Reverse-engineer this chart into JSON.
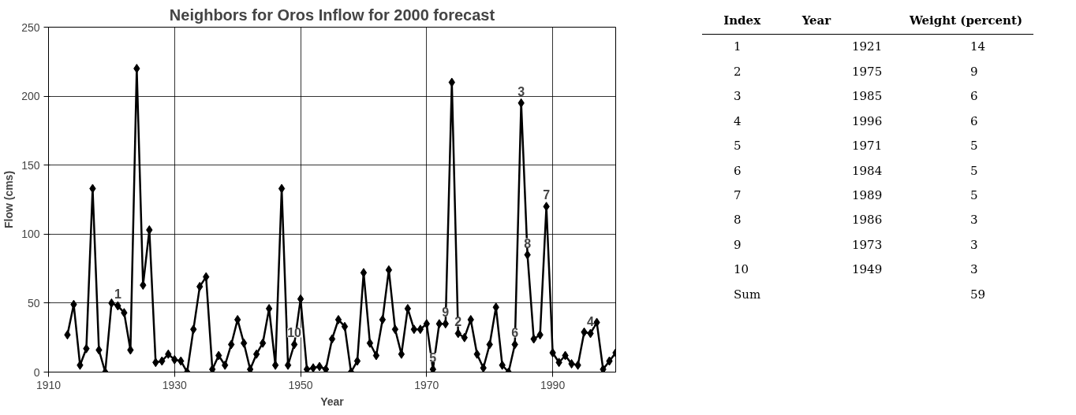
{
  "chart_data": [
    {
      "type": "line",
      "title": "Neighbors for Oros Inflow for 2000 forecast",
      "xlabel": "Year",
      "ylabel": "Flow (cms)",
      "x": [
        1913,
        1914,
        1915,
        1916,
        1917,
        1918,
        1919,
        1920,
        1921,
        1922,
        1923,
        1924,
        1925,
        1926,
        1927,
        1928,
        1929,
        1930,
        1931,
        1932,
        1933,
        1934,
        1935,
        1936,
        1937,
        1938,
        1939,
        1940,
        1941,
        1942,
        1943,
        1944,
        1945,
        1946,
        1947,
        1948,
        1949,
        1950,
        1951,
        1952,
        1953,
        1954,
        1955,
        1956,
        1957,
        1958,
        1959,
        1960,
        1961,
        1962,
        1963,
        1964,
        1965,
        1966,
        1967,
        1968,
        1969,
        1970,
        1971,
        1972,
        1973,
        1974,
        1975,
        1976,
        1977,
        1978,
        1979,
        1980,
        1981,
        1982,
        1983,
        1984,
        1985,
        1986,
        1987,
        1988,
        1989,
        1990,
        1991,
        1992,
        1993,
        1994,
        1995,
        1996,
        1997,
        1998,
        1999,
        2000
      ],
      "series": [
        {
          "color": "#000000",
          "values": [
            27,
            49,
            5,
            17,
            133,
            16,
            0,
            50,
            48,
            43,
            16,
            220,
            63,
            103,
            7,
            8,
            13,
            9,
            8,
            0,
            31,
            62,
            69,
            2,
            12,
            5,
            20,
            38,
            21,
            2,
            13,
            21,
            46,
            5,
            133,
            5,
            20,
            53,
            2,
            3,
            4,
            2,
            24,
            38,
            33,
            0,
            8,
            72,
            21,
            12,
            38,
            74,
            31,
            13,
            46,
            31,
            31,
            35,
            2,
            35,
            35,
            210,
            28,
            25,
            38,
            13,
            3,
            20,
            47,
            5,
            0,
            20,
            195,
            85,
            24,
            27,
            120,
            14,
            7,
            12,
            6,
            5,
            29,
            28,
            36,
            2,
            8,
            14
          ]
        }
      ],
      "xlim": [
        1910,
        2000
      ],
      "xticks": [
        1910,
        1930,
        1950,
        1970,
        1990
      ],
      "ylim": [
        0,
        250
      ],
      "yticks": [
        0,
        50,
        100,
        150,
        200,
        250
      ],
      "grid": true,
      "marker": "diamond",
      "line_style": "solid",
      "annotations": [
        {
          "text": "1",
          "x": 1921,
          "y": 48
        },
        {
          "text": "2",
          "x": 1975,
          "y": 28
        },
        {
          "text": "3",
          "x": 1985,
          "y": 195
        },
        {
          "text": "4",
          "x": 1996,
          "y": 28
        },
        {
          "text": "5",
          "x": 1971,
          "y": 2
        },
        {
          "text": "6",
          "x": 1984,
          "y": 20
        },
        {
          "text": "7",
          "x": 1989,
          "y": 120
        },
        {
          "text": "8",
          "x": 1986,
          "y": 85
        },
        {
          "text": "9",
          "x": 1973,
          "y": 35
        },
        {
          "text": "10",
          "x": 1949,
          "y": 20
        }
      ]
    },
    {
      "type": "other",
      "categories": [
        "Index",
        "Year",
        "Weight (percent)"
      ],
      "cell_labels": [
        [
          "1",
          "1921",
          "14"
        ],
        [
          "2",
          "1975",
          "9"
        ],
        [
          "3",
          "1985",
          "6"
        ],
        [
          "4",
          "1996",
          "6"
        ],
        [
          "5",
          "1971",
          "5"
        ],
        [
          "6",
          "1984",
          "5"
        ],
        [
          "7",
          "1989",
          "5"
        ],
        [
          "8",
          "1986",
          "3"
        ],
        [
          "9",
          "1973",
          "3"
        ],
        [
          "10",
          "1949",
          "3"
        ],
        [
          "Sum",
          null,
          "59"
        ]
      ]
    }
  ]
}
